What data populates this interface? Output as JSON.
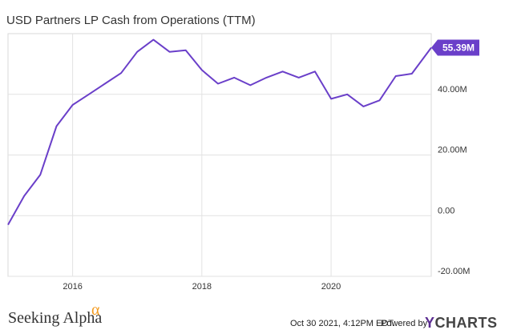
{
  "chart_data": {
    "type": "line",
    "title": "USD Partners LP Cash from Operations (TTM)",
    "x_ticks": [
      "2016",
      "2018",
      "2020"
    ],
    "y_ticks": [
      {
        "value": 40,
        "label": "40.00M"
      },
      {
        "value": 20,
        "label": "20.00M"
      },
      {
        "value": 0,
        "label": "0.00"
      },
      {
        "value": -20,
        "label": "-20.00M"
      }
    ],
    "xlim": [
      2015.0,
      2021.55
    ],
    "ylim": [
      -20,
      60
    ],
    "grid": true,
    "line_color": "#6a3fc9",
    "series": [
      {
        "values": [
          {
            "x": 2015.0,
            "y": -3.0
          },
          {
            "x": 2015.25,
            "y": 6.5
          },
          {
            "x": 2015.5,
            "y": 13.5
          },
          {
            "x": 2015.75,
            "y": 29.5
          },
          {
            "x": 2016.0,
            "y": 36.5
          },
          {
            "x": 2016.25,
            "y": 40.0
          },
          {
            "x": 2016.5,
            "y": 43.5
          },
          {
            "x": 2016.75,
            "y": 47.0
          },
          {
            "x": 2017.0,
            "y": 54.0
          },
          {
            "x": 2017.25,
            "y": 58.0
          },
          {
            "x": 2017.5,
            "y": 54.0
          },
          {
            "x": 2017.75,
            "y": 54.5
          },
          {
            "x": 2018.0,
            "y": 48.0
          },
          {
            "x": 2018.25,
            "y": 43.5
          },
          {
            "x": 2018.5,
            "y": 45.5
          },
          {
            "x": 2018.75,
            "y": 43.0
          },
          {
            "x": 2019.0,
            "y": 45.5
          },
          {
            "x": 2019.25,
            "y": 47.5
          },
          {
            "x": 2019.5,
            "y": 45.5
          },
          {
            "x": 2019.75,
            "y": 47.5
          },
          {
            "x": 2020.0,
            "y": 38.5
          },
          {
            "x": 2020.25,
            "y": 40.0
          },
          {
            "x": 2020.5,
            "y": 36.0
          },
          {
            "x": 2020.75,
            "y": 38.0
          },
          {
            "x": 2021.0,
            "y": 46.0
          },
          {
            "x": 2021.25,
            "y": 46.8
          },
          {
            "x": 2021.55,
            "y": 55.39
          }
        ]
      }
    ],
    "last_value_label": "55.39M",
    "label_bg": "#6a3fc9"
  },
  "footer": {
    "brand": "Seeking Alpha",
    "brand_symbol": "α",
    "timestamp": "Oct 30 2021, 4:12PM EDT.",
    "powered_by": "Powered by",
    "ycharts_y": "Y",
    "ycharts_rest": "CHARTS"
  }
}
